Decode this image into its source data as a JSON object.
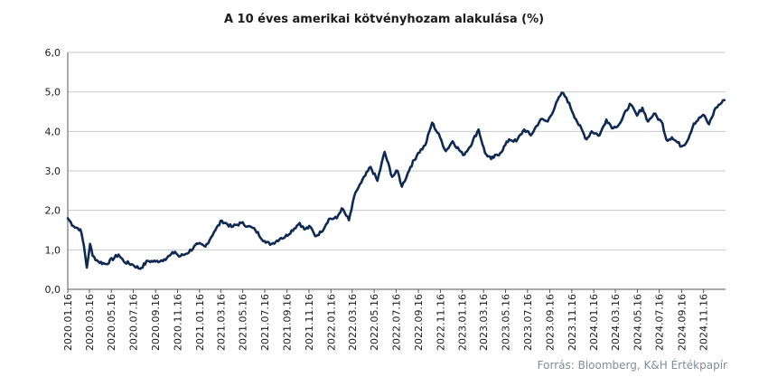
{
  "chart_data": {
    "type": "line",
    "title": "A 10 éves amerikai kötvényhozam alakulása (%)",
    "source": "Forrás: Bloomberg, K&H Értékpapír",
    "ylim": [
      0,
      6
    ],
    "yticks": [
      "0,0",
      "1,0",
      "2,0",
      "3,0",
      "4,0",
      "5,0",
      "6,0"
    ],
    "grid": "horizontal",
    "xticks": [
      "2020.01.16",
      "2020.03.16",
      "2020.05.16",
      "2020.07.16",
      "2020.09.16",
      "2020.11.16",
      "2021.01.16",
      "2021.03.16",
      "2021.05.16",
      "2021.07.16",
      "2021.09.16",
      "2021.11.16",
      "2022.01.16",
      "2022.03.16",
      "2022.05.16",
      "2022.07.16",
      "2022.09.16",
      "2022.11.16",
      "2023.01.16",
      "2023.03.16",
      "2023.05.16",
      "2023.07.16",
      "2023.09.16",
      "2023.11.16",
      "2024.01.16",
      "2024.03.16",
      "2024.05.16",
      "2024.07.16",
      "2024.09.16",
      "2024.11.16"
    ],
    "series": [
      {
        "color": "#0e2a52",
        "points": [
          [
            "2020-01-16",
            1.8
          ],
          [
            "2020-02-01",
            1.6
          ],
          [
            "2020-02-20",
            1.52
          ],
          [
            "2020-03-01",
            1.1
          ],
          [
            "2020-03-09",
            0.55
          ],
          [
            "2020-03-18",
            1.15
          ],
          [
            "2020-03-25",
            0.85
          ],
          [
            "2020-04-10",
            0.7
          ],
          [
            "2020-05-01",
            0.64
          ],
          [
            "2020-06-05",
            0.88
          ],
          [
            "2020-06-20",
            0.7
          ],
          [
            "2020-07-15",
            0.62
          ],
          [
            "2020-08-04",
            0.52
          ],
          [
            "2020-08-25",
            0.72
          ],
          [
            "2020-09-16",
            0.7
          ],
          [
            "2020-10-10",
            0.76
          ],
          [
            "2020-10-25",
            0.85
          ],
          [
            "2020-11-09",
            0.95
          ],
          [
            "2020-11-20",
            0.83
          ],
          [
            "2020-12-10",
            0.9
          ],
          [
            "2021-01-12",
            1.15
          ],
          [
            "2021-02-01",
            1.08
          ],
          [
            "2021-02-25",
            1.45
          ],
          [
            "2021-03-19",
            1.74
          ],
          [
            "2021-04-15",
            1.58
          ],
          [
            "2021-05-12",
            1.68
          ],
          [
            "2021-06-01",
            1.6
          ],
          [
            "2021-06-20",
            1.5
          ],
          [
            "2021-07-19",
            1.18
          ],
          [
            "2021-08-04",
            1.15
          ],
          [
            "2021-08-30",
            1.3
          ],
          [
            "2021-09-10",
            1.32
          ],
          [
            "2021-10-21",
            1.68
          ],
          [
            "2021-11-03",
            1.52
          ],
          [
            "2021-11-20",
            1.58
          ],
          [
            "2021-12-03",
            1.35
          ],
          [
            "2021-12-20",
            1.45
          ],
          [
            "2022-01-10",
            1.78
          ],
          [
            "2022-02-01",
            1.8
          ],
          [
            "2022-02-15",
            2.05
          ],
          [
            "2022-03-07",
            1.75
          ],
          [
            "2022-03-25",
            2.45
          ],
          [
            "2022-04-10",
            2.7
          ],
          [
            "2022-05-06",
            3.1
          ],
          [
            "2022-05-25",
            2.75
          ],
          [
            "2022-06-14",
            3.48
          ],
          [
            "2022-07-05",
            2.85
          ],
          [
            "2022-07-20",
            3.0
          ],
          [
            "2022-08-01",
            2.6
          ],
          [
            "2022-08-25",
            3.1
          ],
          [
            "2022-09-15",
            3.45
          ],
          [
            "2022-10-05",
            3.65
          ],
          [
            "2022-10-24",
            4.22
          ],
          [
            "2022-11-15",
            3.85
          ],
          [
            "2022-12-01",
            3.5
          ],
          [
            "2022-12-20",
            3.75
          ],
          [
            "2023-01-18",
            3.4
          ],
          [
            "2023-02-05",
            3.6
          ],
          [
            "2023-03-02",
            4.05
          ],
          [
            "2023-03-20",
            3.45
          ],
          [
            "2023-04-06",
            3.3
          ],
          [
            "2023-05-01",
            3.45
          ],
          [
            "2023-05-26",
            3.8
          ],
          [
            "2023-06-15",
            3.75
          ],
          [
            "2023-07-07",
            4.05
          ],
          [
            "2023-07-25",
            3.9
          ],
          [
            "2023-08-21",
            4.3
          ],
          [
            "2023-09-10",
            4.25
          ],
          [
            "2023-10-19",
            4.98
          ],
          [
            "2023-11-01",
            4.85
          ],
          [
            "2023-11-28",
            4.3
          ],
          [
            "2023-12-27",
            3.8
          ],
          [
            "2024-01-10",
            4.0
          ],
          [
            "2024-02-01",
            3.9
          ],
          [
            "2024-02-20",
            4.3
          ],
          [
            "2024-03-10",
            4.08
          ],
          [
            "2024-03-30",
            4.22
          ],
          [
            "2024-04-25",
            4.7
          ],
          [
            "2024-05-15",
            4.4
          ],
          [
            "2024-05-30",
            4.6
          ],
          [
            "2024-06-15",
            4.25
          ],
          [
            "2024-07-01",
            4.45
          ],
          [
            "2024-07-25",
            4.2
          ],
          [
            "2024-08-05",
            3.78
          ],
          [
            "2024-08-20",
            3.85
          ],
          [
            "2024-09-16",
            3.62
          ],
          [
            "2024-10-01",
            3.75
          ],
          [
            "2024-10-20",
            4.2
          ],
          [
            "2024-11-15",
            4.42
          ],
          [
            "2024-12-01",
            4.18
          ],
          [
            "2024-12-20",
            4.6
          ],
          [
            "2025-01-13",
            4.79
          ]
        ]
      }
    ]
  }
}
